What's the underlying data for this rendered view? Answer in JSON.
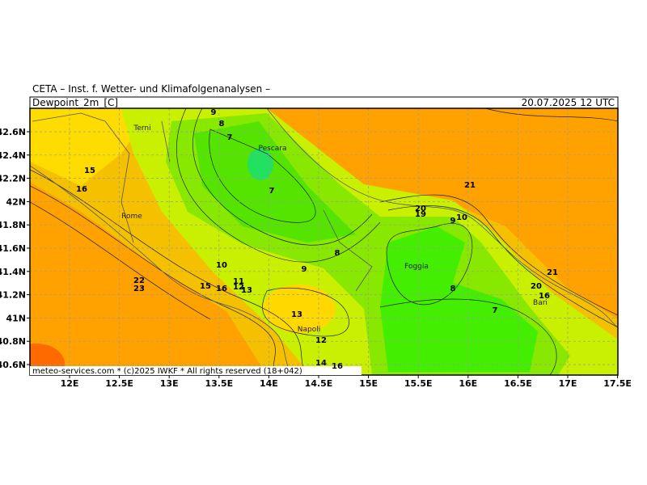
{
  "header": {
    "institute": "CETA – Inst. f. Wetter- und Klimafolgenanalysen –",
    "variable": "Dewpoint_2m_[C]",
    "valid_time": "20.07.2025 12 UTC"
  },
  "map": {
    "latitude_labels": [
      "42.6N",
      "42.4N",
      "42.2N",
      "42N",
      "41.8N",
      "41.6N",
      "41.4N",
      "41.2N",
      "41N",
      "40.8N",
      "40.6N"
    ],
    "longitude_labels": [
      "12E",
      "12.5E",
      "13E",
      "13.5E",
      "14E",
      "14.5E",
      "15E",
      "15.5E",
      "16E",
      "16.5E",
      "17E",
      "17.5E"
    ],
    "places": [
      "Terni",
      "Pescara",
      "Rome",
      "Foggia",
      "Napoli",
      "Bari"
    ],
    "contour_labels": [
      "9",
      "8",
      "7",
      "15",
      "16",
      "7",
      "21",
      "20",
      "19",
      "9",
      "10",
      "8",
      "10",
      "9",
      "22",
      "23",
      "11",
      "12",
      "13",
      "15",
      "16",
      "13",
      "12",
      "21",
      "20",
      "16",
      "8",
      "7",
      "16",
      "14"
    ],
    "footer": "meteo-services.com * (c)2025 IWKF * All rights reserved (18+042)"
  }
}
